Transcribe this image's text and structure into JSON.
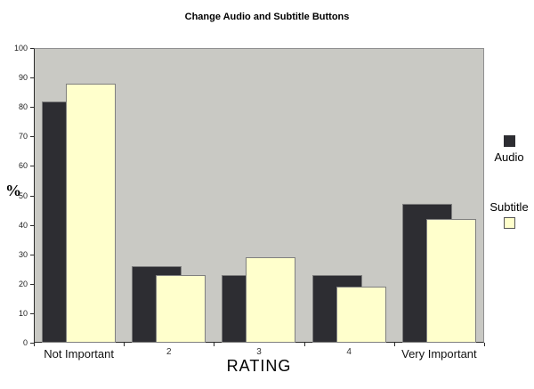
{
  "title": "Change Audio and Subtitle Buttons",
  "chart_data": {
    "type": "bar",
    "title": "Change Audio and Subtitle Buttons",
    "categories": [
      "Not Important",
      "2",
      "3",
      "4",
      "Very Important"
    ],
    "series": [
      {
        "name": "Audio",
        "color": "#2d2d32",
        "border_color": "#7f7f7f",
        "values": [
          82,
          26,
          23,
          23,
          47
        ]
      },
      {
        "name": "Subtitle",
        "color": "#ffffcc",
        "border_color": "#7f7f7f",
        "values": [
          88,
          23,
          29,
          19,
          42
        ]
      }
    ],
    "xlabel": "RATING",
    "ylabel": "%",
    "ylim": [
      0,
      100
    ],
    "ytick_step": 10,
    "y_tick_labels": [
      "0",
      "10",
      "20",
      "30",
      "40",
      "50",
      "60",
      "70",
      "80",
      "90",
      "100"
    ],
    "grid": false,
    "legend_position": "right",
    "plot_background": "#c9c9c4",
    "bar_overlap_percent": 50
  }
}
